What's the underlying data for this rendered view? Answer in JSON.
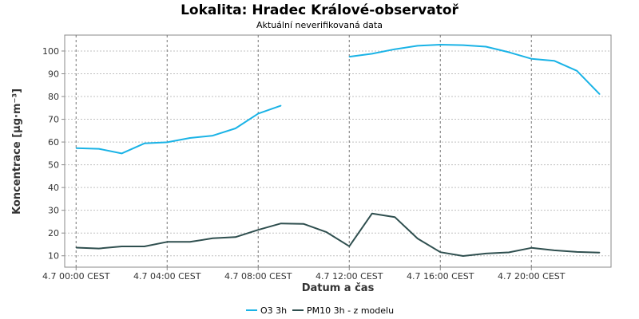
{
  "chart_data": {
    "type": "line",
    "title": "Lokalita: Hradec Králové-observatoř",
    "subtitle": "Aktuální neverifikovaná data",
    "xlabel": "Datum a čas",
    "ylabel": "Koncentrace [µg·m⁻³]",
    "ylim": [
      5,
      107
    ],
    "yticks": [
      10,
      20,
      30,
      40,
      50,
      60,
      70,
      80,
      90,
      100
    ],
    "xlim": [
      -0.5,
      23.5
    ],
    "xticks": [
      {
        "x": 0,
        "label": "4.7 00:00 CEST"
      },
      {
        "x": 4,
        "label": "4.7 04:00 CEST"
      },
      {
        "x": 8,
        "label": "4.7 08:00 CEST"
      },
      {
        "x": 12,
        "label": "4.7 12:00 CEST"
      },
      {
        "x": 16,
        "label": "4.7 16:00 CEST"
      },
      {
        "x": 20,
        "label": "4.7 20:00 CEST"
      }
    ],
    "grid": true,
    "legend_position": "bottom",
    "series": [
      {
        "name": "O3 3h",
        "color": "#1ab3e6",
        "x": [
          0,
          1,
          2,
          3,
          4,
          5,
          6,
          7,
          8,
          9,
          12,
          13,
          14,
          15,
          16,
          17,
          18,
          19,
          20,
          21,
          22,
          23
        ],
        "y": [
          57.3,
          57.0,
          55.0,
          59.4,
          59.9,
          61.8,
          62.8,
          66.0,
          72.5,
          76.0,
          97.5,
          98.8,
          100.8,
          102.3,
          102.8,
          102.6,
          101.9,
          99.5,
          96.6,
          95.7,
          91.3,
          81.0
        ],
        "segments": [
          [
            0,
            9
          ],
          [
            10,
            21
          ]
        ]
      },
      {
        "name": "PM10 3h - z modelu",
        "color": "#2f4f4f",
        "x": [
          0,
          1,
          2,
          3,
          4,
          5,
          6,
          7,
          8,
          9,
          10,
          11,
          12,
          13,
          14,
          15,
          16,
          17,
          18,
          19,
          20,
          21,
          22,
          23
        ],
        "y": [
          13.6,
          13.2,
          14.1,
          14.1,
          16.1,
          16.1,
          17.7,
          18.2,
          21.4,
          24.2,
          24.0,
          20.4,
          14.2,
          28.6,
          27.0,
          17.6,
          11.6,
          9.9,
          11.0,
          11.5,
          13.5,
          12.4,
          11.7,
          11.4
        ],
        "segments": [
          [
            0,
            23
          ]
        ]
      }
    ]
  }
}
